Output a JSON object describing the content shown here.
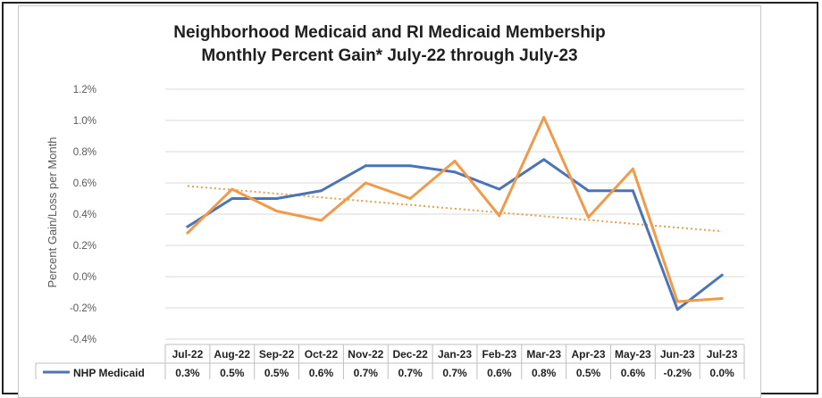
{
  "chart_data": {
    "type": "line",
    "title": "Neighborhood Medicaid and RI Medicaid Membership",
    "subtitle": "Monthly Percent Gain* July-22 through July-23",
    "ylabel": "Percent Gain/Loss per Month",
    "xlabel": "",
    "ylim": [
      -0.4,
      1.2
    ],
    "yticks": [
      "1.2%",
      "1.0%",
      "0.8%",
      "0.6%",
      "0.4%",
      "0.2%",
      "0.0%",
      "-0.2%",
      "-0.4%"
    ],
    "ytick_values": [
      1.2,
      1.0,
      0.8,
      0.6,
      0.4,
      0.2,
      0.0,
      -0.2,
      -0.4
    ],
    "grid": true,
    "categories": [
      "Jul-22",
      "Aug-22",
      "Sep-22",
      "Oct-22",
      "Nov-22",
      "Dec-22",
      "Jan-23",
      "Feb-23",
      "Mar-23",
      "Apr-23",
      "May-23",
      "Jun-23",
      "Jul-23"
    ],
    "series": [
      {
        "name": "NHP Medicaid",
        "color": "#4a74b5",
        "values": [
          0.32,
          0.5,
          0.5,
          0.55,
          0.71,
          0.71,
          0.67,
          0.56,
          0.75,
          0.55,
          0.55,
          -0.21,
          0.01
        ],
        "table_labels": [
          "0.3%",
          "0.5%",
          "0.5%",
          "0.6%",
          "0.7%",
          "0.7%",
          "0.7%",
          "0.6%",
          "0.8%",
          "0.5%",
          "0.6%",
          "-0.2%",
          "0.0%"
        ]
      },
      {
        "name": "",
        "color": "#f09a4a",
        "values": [
          0.28,
          0.56,
          0.42,
          0.36,
          0.6,
          0.5,
          0.74,
          0.39,
          1.02,
          0.38,
          0.69,
          -0.16,
          -0.14
        ]
      }
    ],
    "trendline": {
      "color": "#f09a4a",
      "start": 0.58,
      "end": 0.29,
      "style": "dotted"
    }
  },
  "data_table": {
    "rows": [
      {
        "name": "NHP Medicaid",
        "color": "#4a74b5",
        "values": [
          "0.3%",
          "0.5%",
          "0.5%",
          "0.6%",
          "0.7%",
          "0.7%",
          "0.7%",
          "0.6%",
          "0.8%",
          "0.5%",
          "0.6%",
          "-0.2%",
          "0.0%"
        ]
      }
    ]
  }
}
